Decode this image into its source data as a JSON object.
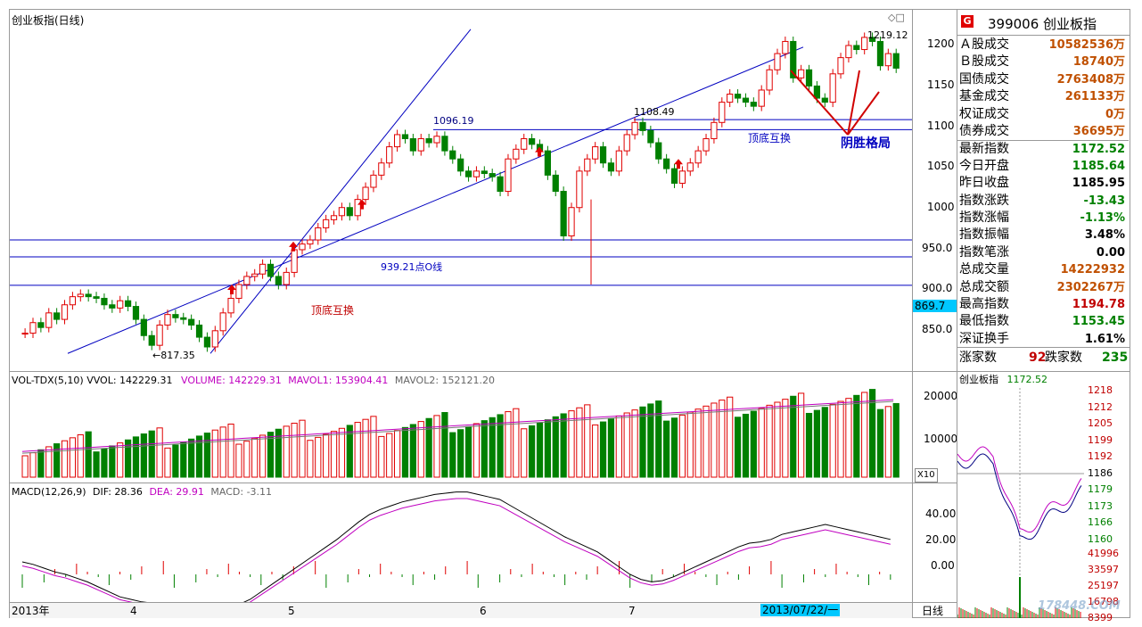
{
  "chart_header": {
    "title": "创业板指(日线)"
  },
  "price_axis": [
    "1200",
    "1150",
    "1100",
    "1050",
    "1000",
    "950.0",
    "900.0",
    "850.0"
  ],
  "price_highlight": "869.7",
  "annotations": {
    "low_label": "←817.35",
    "high_label": "1219.12",
    "level_1096": "1096.19",
    "level_1108": "1108.49",
    "line_939": "939.21点O线",
    "swap_bottom": "顶底互换",
    "swap_top": "顶底互换",
    "yin_pattern": "阴胜格局",
    "small_icons": "◇□"
  },
  "vol_header": {
    "name": "VOL-TDX(5,10)",
    "vol": "VVOL: 142229.31",
    "volume": "VOLUME: 142229.31",
    "mavol1": "MAVOL1: 153904.41",
    "mavol2": "MAVOL2: 152121.20"
  },
  "vol_axis": [
    "20000",
    "10000"
  ],
  "vol_unit": "X10",
  "macd_header": {
    "name": "MACD(12,26,9)",
    "dif": "DIF: 28.36",
    "dea": "DEA: 29.91",
    "macd": "MACD: -3.11"
  },
  "macd_axis": [
    "40.00",
    "20.00",
    "0.00"
  ],
  "date_axis": [
    "2013年",
    "4",
    "5",
    "6",
    "7"
  ],
  "date_highlight": "2013/07/22/一",
  "period_label": "日线",
  "quote": {
    "badge": "G",
    "code_name": "399006 创业板指",
    "rows": [
      {
        "k": "Ａ股成交",
        "v": "10582536万",
        "c": "or"
      },
      {
        "k": "Ｂ股成交",
        "v": "18740万",
        "c": "or"
      },
      {
        "k": "国债成交",
        "v": "2763408万",
        "c": "or"
      },
      {
        "k": "基金成交",
        "v": "261133万",
        "c": "or"
      },
      {
        "k": "权证成交",
        "v": "0万",
        "c": "or"
      },
      {
        "k": "债券成交",
        "v": "36695万",
        "c": "or"
      },
      {
        "k": "最新指数",
        "v": "1172.52",
        "c": "dn"
      },
      {
        "k": "今日开盘",
        "v": "1185.64",
        "c": "dn"
      },
      {
        "k": "昨日收盘",
        "v": "1185.95",
        "c": "bk"
      },
      {
        "k": "指数涨跌",
        "v": "-13.43",
        "c": "dn"
      },
      {
        "k": "指数涨幅",
        "v": "-1.13%",
        "c": "dn"
      },
      {
        "k": "指数振幅",
        "v": "3.48%",
        "c": "bk"
      },
      {
        "k": "指数笔涨",
        "v": "0.00",
        "c": "bk"
      },
      {
        "k": "总成交量",
        "v": "14222932",
        "c": "or"
      },
      {
        "k": "总成交额",
        "v": "2302267万",
        "c": "or"
      },
      {
        "k": "最高指数",
        "v": "1194.78",
        "c": "up"
      },
      {
        "k": "最低指数",
        "v": "1153.45",
        "c": "dn"
      },
      {
        "k": "深证换手",
        "v": "1.61%",
        "c": "bk"
      }
    ],
    "rise_label": "涨家数",
    "rise_val": "92",
    "fall_label": "跌家数",
    "fall_val": "235"
  },
  "mini": {
    "title": "创业板指",
    "last": "1172.52",
    "price_axis": [
      "1218",
      "1212",
      "1205",
      "1199",
      "1192",
      "1186",
      "1179",
      "1173",
      "1166",
      "1160"
    ],
    "vol_axis": [
      "41996",
      "33597",
      "25197",
      "16798",
      "8399"
    ]
  },
  "watermark": "178448.COM",
  "colors": {
    "up": "#e00000",
    "down": "#008000",
    "line": "#0000c0",
    "bg": "#ffffff",
    "highlight": "#00c8ff"
  }
}
